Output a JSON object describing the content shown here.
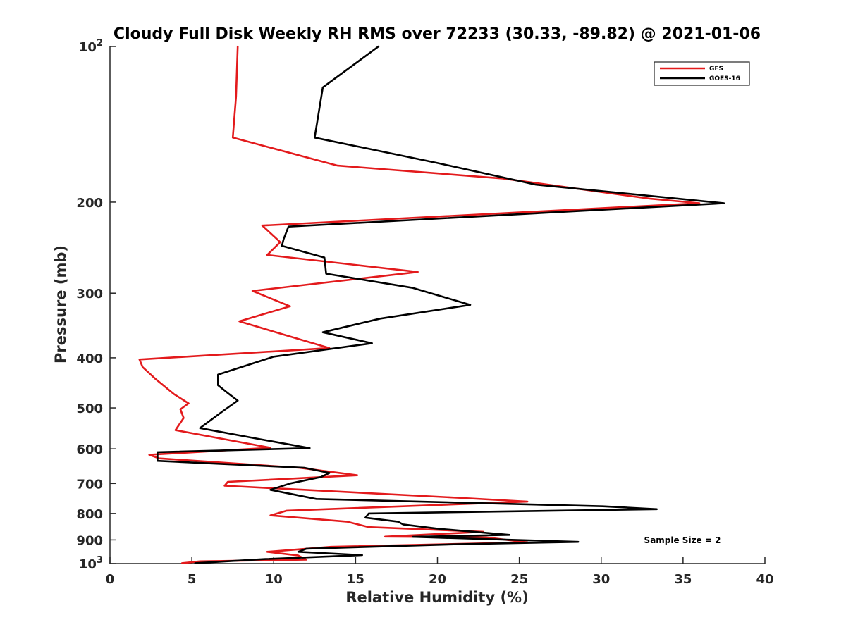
{
  "chart_data": {
    "type": "line",
    "title": "Cloudy Full Disk Weekly RH RMS over 72233 (30.33, -89.82) @ 2021-01-06",
    "xlabel": "Relative Humidity (%)",
    "ylabel": "Pressure (mb)",
    "xlim": [
      0,
      40
    ],
    "ylim": [
      100,
      1000
    ],
    "yscale": "log",
    "yreversed": true,
    "x_ticks": [
      0,
      5,
      10,
      15,
      20,
      25,
      30,
      35,
      40
    ],
    "y_ticks": [
      {
        "value": 100,
        "label": "10",
        "sup": "2"
      },
      {
        "value": 200,
        "label": "200"
      },
      {
        "value": 300,
        "label": "300"
      },
      {
        "value": 400,
        "label": "400"
      },
      {
        "value": 500,
        "label": "500"
      },
      {
        "value": 600,
        "label": "600"
      },
      {
        "value": 700,
        "label": "700"
      },
      {
        "value": 800,
        "label": "800"
      },
      {
        "value": 900,
        "label": "900"
      },
      {
        "value": 1000,
        "label": "10",
        "sup": "3"
      }
    ],
    "legend_position": "top-right",
    "annotation": "Sample Size = 2",
    "series": [
      {
        "name": "GFS",
        "color": "#e31a1c",
        "points": [
          [
            7.8,
            100
          ],
          [
            7.7,
            125
          ],
          [
            7.5,
            150
          ],
          [
            13.9,
            170
          ],
          [
            24.0,
            180
          ],
          [
            33.0,
            197
          ],
          [
            36.0,
            201
          ],
          [
            9.3,
            222
          ],
          [
            10.4,
            239
          ],
          [
            9.6,
            253
          ],
          [
            18.8,
            273
          ],
          [
            8.7,
            297
          ],
          [
            11.0,
            318
          ],
          [
            7.9,
            340
          ],
          [
            10.5,
            360
          ],
          [
            13.4,
            383
          ],
          [
            1.8,
            403
          ],
          [
            2.0,
            417
          ],
          [
            2.8,
            440
          ],
          [
            3.9,
            470
          ],
          [
            4.8,
            490
          ],
          [
            4.3,
            503
          ],
          [
            4.5,
            523
          ],
          [
            4.0,
            552
          ],
          [
            9.8,
            597
          ],
          [
            2.4,
            616
          ],
          [
            3.0,
            626
          ],
          [
            11.6,
            653
          ],
          [
            15.1,
            675
          ],
          [
            7.2,
            695
          ],
          [
            7.0,
            707
          ],
          [
            21.6,
            747
          ],
          [
            25.5,
            759
          ],
          [
            10.8,
            790
          ],
          [
            9.8,
            807
          ],
          [
            14.5,
            830
          ],
          [
            15.8,
            850
          ],
          [
            22.8,
            868
          ],
          [
            16.8,
            887
          ],
          [
            23.0,
            890
          ],
          [
            25.5,
            910
          ],
          [
            13.5,
            928
          ],
          [
            9.6,
            949
          ],
          [
            11.5,
            965
          ],
          [
            12.0,
            983
          ],
          [
            5.5,
            990
          ],
          [
            4.4,
            998
          ]
        ]
      },
      {
        "name": "GOES-16",
        "color": "#000000",
        "points": [
          [
            16.4,
            100
          ],
          [
            13.0,
            120
          ],
          [
            12.5,
            150
          ],
          [
            20.0,
            168
          ],
          [
            26.0,
            185
          ],
          [
            37.5,
            201
          ],
          [
            10.9,
            223
          ],
          [
            10.6,
            236
          ],
          [
            10.5,
            243
          ],
          [
            13.1,
            256
          ],
          [
            13.2,
            275
          ],
          [
            18.5,
            293
          ],
          [
            22.0,
            316
          ],
          [
            16.5,
            336
          ],
          [
            13.0,
            357
          ],
          [
            16.0,
            375
          ],
          [
            10.0,
            398
          ],
          [
            6.6,
            431
          ],
          [
            6.6,
            452
          ],
          [
            7.2,
            468
          ],
          [
            7.8,
            484
          ],
          [
            6.9,
            507
          ],
          [
            5.5,
            547
          ],
          [
            9.2,
            575
          ],
          [
            12.2,
            598
          ],
          [
            2.9,
            609
          ],
          [
            2.9,
            633
          ],
          [
            11.9,
            653
          ],
          [
            13.4,
            668
          ],
          [
            12.9,
            680
          ],
          [
            11.0,
            700
          ],
          [
            9.8,
            720
          ],
          [
            12.6,
            750
          ],
          [
            30.1,
            775
          ],
          [
            33.4,
            785
          ],
          [
            15.8,
            800
          ],
          [
            15.6,
            815
          ],
          [
            17.6,
            830
          ],
          [
            17.9,
            840
          ],
          [
            20.0,
            856
          ],
          [
            24.4,
            880
          ],
          [
            18.5,
            888
          ],
          [
            22.0,
            895
          ],
          [
            28.6,
            908
          ],
          [
            21.0,
            918
          ],
          [
            12.0,
            936
          ],
          [
            11.5,
            949
          ],
          [
            15.4,
            963
          ],
          [
            9.5,
            980
          ],
          [
            5.2,
            998
          ]
        ]
      }
    ]
  }
}
